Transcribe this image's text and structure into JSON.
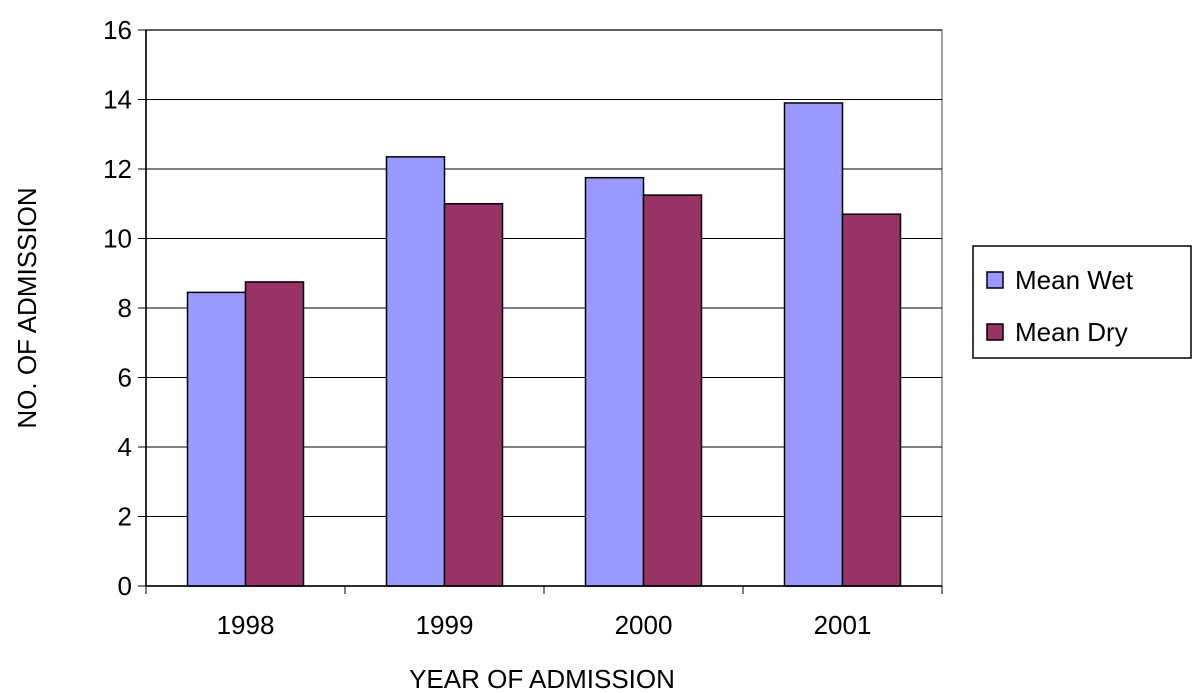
{
  "chart_data": {
    "type": "bar",
    "title": "",
    "xlabel": "YEAR OF ADMISSION",
    "ylabel": "NO. OF ADMISSION",
    "categories": [
      "1998",
      "1999",
      "2000",
      "2001"
    ],
    "series": [
      {
        "name": "Mean Wet",
        "values": [
          8.45,
          12.35,
          11.75,
          13.9
        ],
        "color": "#9999ff"
      },
      {
        "name": "Mean Dry",
        "values": [
          8.75,
          11.0,
          11.25,
          10.7
        ],
        "color": "#993366"
      }
    ],
    "ylim": [
      0,
      16
    ],
    "yticks": [
      0,
      2,
      4,
      6,
      8,
      10,
      12,
      14,
      16
    ],
    "grid": true,
    "legend": "right"
  }
}
